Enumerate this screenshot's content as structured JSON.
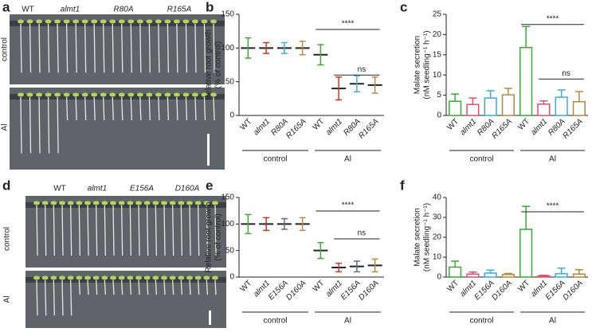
{
  "photos": [
    {
      "letter": "a",
      "columns": [
        "WT",
        "almt1",
        "R80A",
        "R165A"
      ],
      "rows": [
        "control",
        "Al"
      ]
    },
    {
      "letter": "d",
      "columns": [
        "WT",
        "almt1",
        "E156A",
        "D160A"
      ],
      "rows": [
        "control",
        "Al"
      ]
    }
  ],
  "chart_data": [
    {
      "type": "dotplot",
      "letter": "b",
      "ylabel": [
        "Relative root growth",
        "(% of control)"
      ],
      "categories": [
        "WT",
        "almt1",
        "R80A",
        "R165A",
        "WT",
        "almt1",
        "R80A",
        "R165A"
      ],
      "values": [
        100,
        100,
        100,
        100,
        90,
        40,
        47,
        45
      ],
      "errors": [
        15,
        8,
        8,
        10,
        15,
        17,
        12,
        12
      ],
      "colors": [
        "#3aa935",
        "#c0392b",
        "#3fb3c9",
        "#c08a3e",
        "#3aa935",
        "#c0392b",
        "#3fb3c9",
        "#c08a3e"
      ],
      "ylim": [
        0,
        150
      ],
      "yticks": [
        0,
        50,
        100,
        150
      ],
      "groups": [
        "control",
        "Al"
      ],
      "annotations": [
        "****",
        "ns"
      ]
    },
    {
      "type": "bar",
      "letter": "c",
      "ylabel": [
        "Malate secretion",
        "(nM seedling⁻¹ h⁻¹)"
      ],
      "categories": [
        "WT",
        "almt1",
        "R80A",
        "R165A",
        "WT",
        "almt1",
        "R80A",
        "R165A"
      ],
      "values": [
        3.5,
        2.7,
        4.3,
        5.1,
        16.8,
        2.8,
        4.5,
        3.4
      ],
      "errors": [
        1.8,
        1.6,
        1.8,
        1.6,
        5.2,
        0.8,
        1.8,
        2.5
      ],
      "colors": [
        "#3aa935",
        "#e0506a",
        "#3fa9d9",
        "#b08a3e",
        "#3aa935",
        "#e0506a",
        "#3fa9d9",
        "#b08a3e"
      ],
      "ylim": [
        0,
        25
      ],
      "yticks": [
        0,
        5,
        10,
        15,
        20,
        25
      ],
      "groups": [
        "control",
        "Al"
      ],
      "annotations": [
        "****",
        "ns"
      ]
    },
    {
      "type": "dotplot",
      "letter": "e",
      "ylabel": [
        "Relative root growth",
        "(% of control)"
      ],
      "categories": [
        "WT",
        "almt1",
        "E156A",
        "D160A",
        "WT",
        "almt1",
        "E156A",
        "D160A"
      ],
      "values": [
        100,
        100,
        100,
        100,
        50,
        18,
        20,
        22
      ],
      "errors": [
        18,
        12,
        10,
        12,
        15,
        8,
        10,
        12
      ],
      "colors": [
        "#3aa935",
        "#c0392b",
        "#5a6f8a",
        "#c08a3e",
        "#3aa935",
        "#c0392b",
        "#5a6f8a",
        "#c08a3e"
      ],
      "ylim": [
        0,
        150
      ],
      "yticks": [
        0,
        50,
        100,
        150
      ],
      "groups": [
        "control",
        "Al"
      ],
      "annotations": [
        "****",
        "ns"
      ]
    },
    {
      "type": "bar",
      "letter": "f",
      "ylabel": [
        "Malate secretion",
        "(nM seedling⁻¹ h⁻¹)"
      ],
      "categories": [
        "WT",
        "almt1",
        "E156A",
        "D160A",
        "WT",
        "almt1",
        "E156A",
        "D160A"
      ],
      "values": [
        5,
        1.5,
        2,
        1.3,
        24,
        0.6,
        1.7,
        1.5
      ],
      "errors": [
        3,
        1,
        1.5,
        0.5,
        11.5,
        0.3,
        2.8,
        2.2
      ],
      "colors": [
        "#3aa935",
        "#e0506a",
        "#3fa9d9",
        "#b08a3e",
        "#3aa935",
        "#e0506a",
        "#3fa9d9",
        "#b08a3e"
      ],
      "ylim": [
        0,
        40
      ],
      "yticks": [
        0,
        10,
        20,
        30,
        40
      ],
      "groups": [
        "control",
        "Al"
      ],
      "annotations": [
        "****"
      ]
    }
  ]
}
